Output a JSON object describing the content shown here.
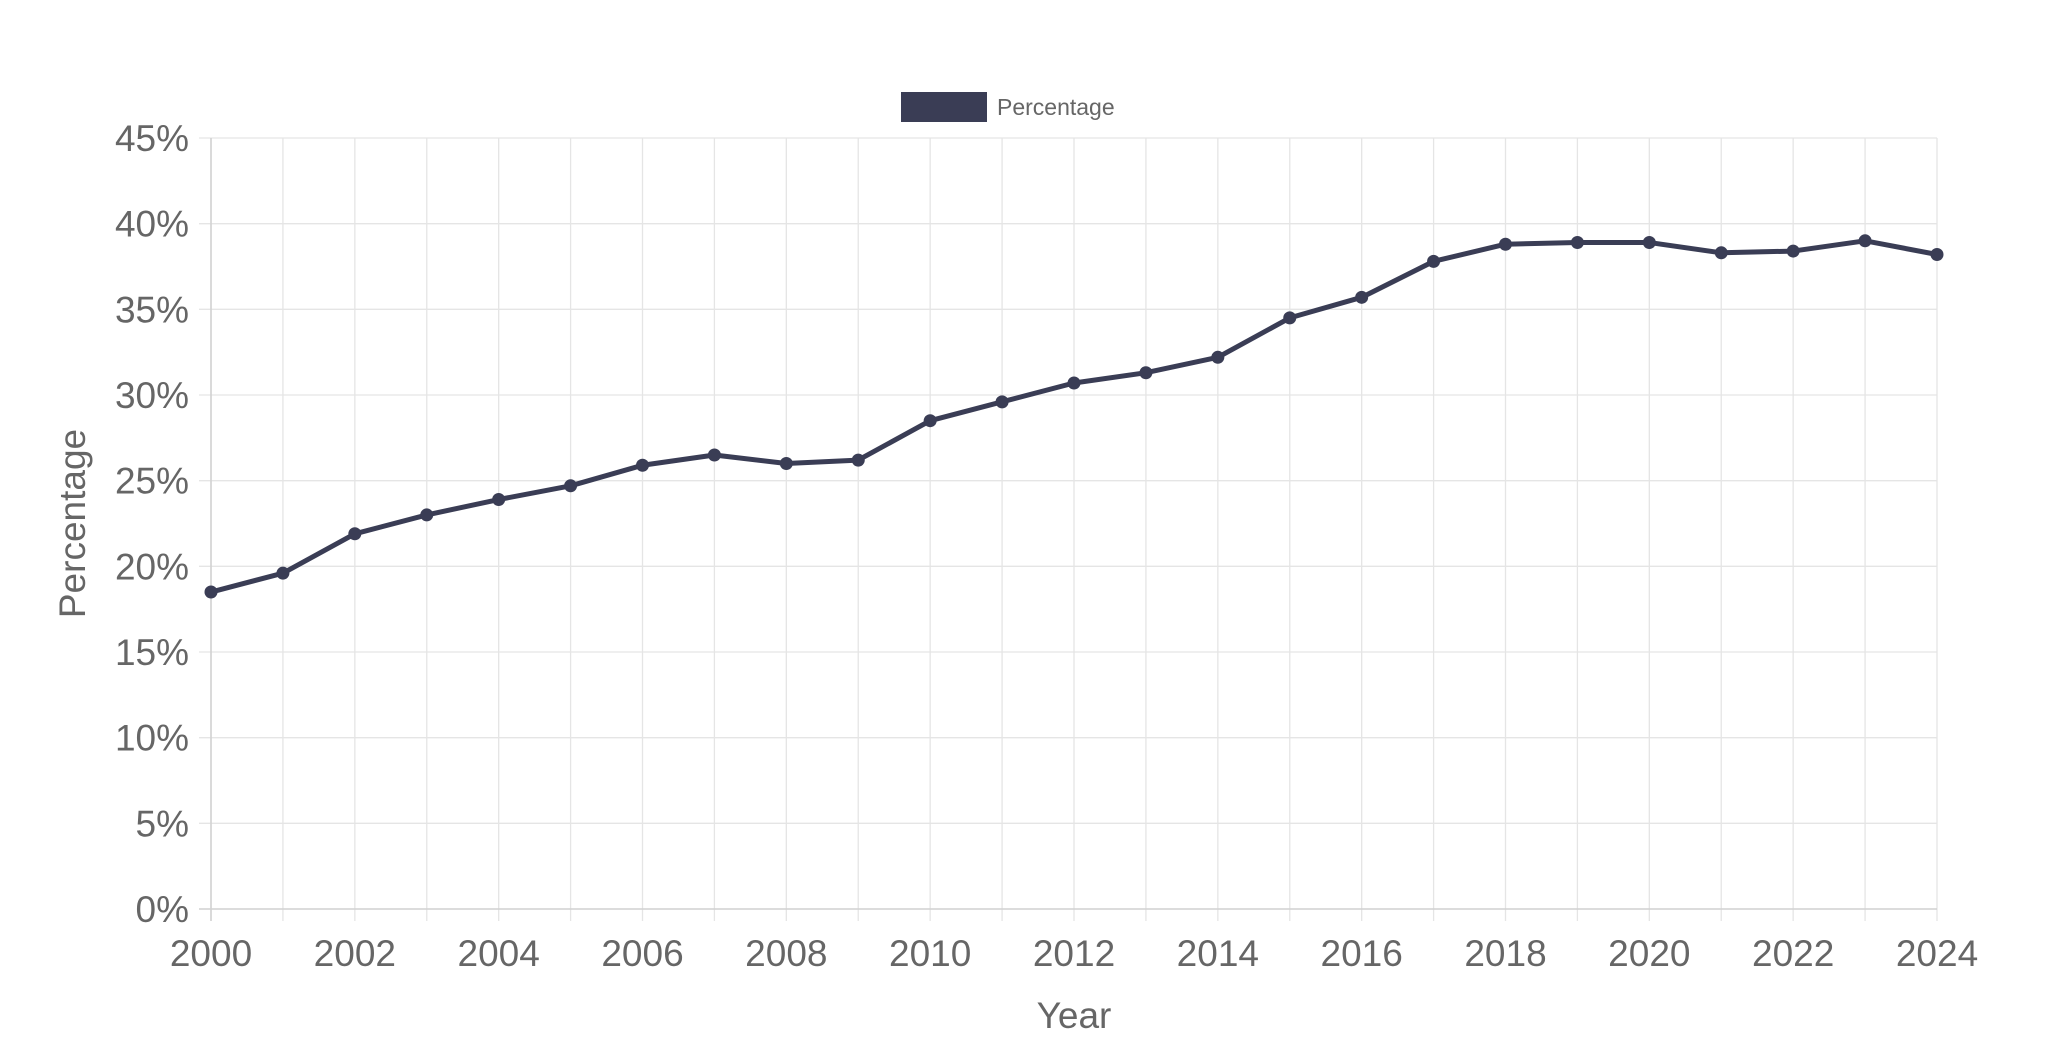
{
  "chart_data": {
    "type": "line",
    "xlabel": "Year",
    "ylabel": "Percentage",
    "x_ticks": [
      "2000",
      "2002",
      "2004",
      "2006",
      "2008",
      "2010",
      "2012",
      "2014",
      "2016",
      "2018",
      "2020",
      "2022",
      "2024"
    ],
    "y_ticks": [
      "0%",
      "5%",
      "10%",
      "15%",
      "20%",
      "25%",
      "30%",
      "35%",
      "40%",
      "45%"
    ],
    "xlim": [
      2000,
      2024
    ],
    "ylim": [
      0,
      45
    ],
    "grid": true,
    "legend_position": "top-center",
    "series": [
      {
        "name": "Percentage",
        "color": "#3a3d55",
        "x": [
          2000,
          2001,
          2002,
          2003,
          2004,
          2005,
          2006,
          2007,
          2008,
          2009,
          2010,
          2011,
          2012,
          2013,
          2014,
          2015,
          2016,
          2017,
          2018,
          2019,
          2020,
          2021,
          2022,
          2023,
          2024
        ],
        "y": [
          18.5,
          19.6,
          21.9,
          23.0,
          23.9,
          24.7,
          25.9,
          26.5,
          26.0,
          26.2,
          28.5,
          29.6,
          30.7,
          31.3,
          32.2,
          34.5,
          35.7,
          37.8,
          38.8,
          38.9,
          38.9,
          38.3,
          38.4,
          39.0,
          38.2
        ]
      }
    ]
  }
}
